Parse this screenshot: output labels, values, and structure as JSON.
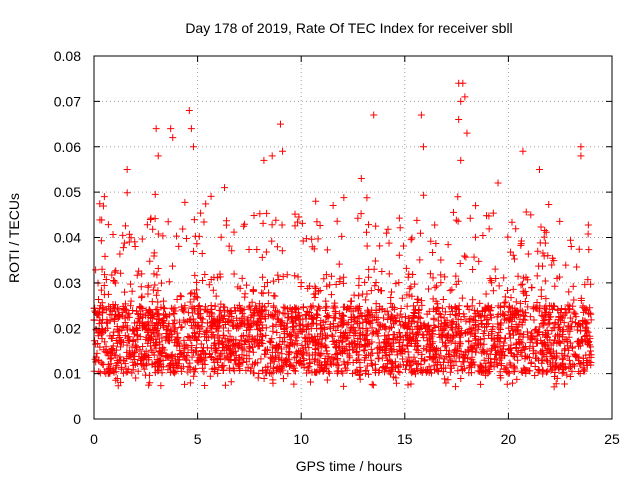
{
  "chart_data": {
    "type": "scatter",
    "title": "Day 178 of 2019, Rate Of TEC Index for receiver sbll",
    "xlabel": "GPS time / hours",
    "ylabel": "ROTI / TECUs",
    "xlim": [
      0,
      25
    ],
    "ylim": [
      0,
      0.08
    ],
    "xticks": [
      0,
      5,
      10,
      15,
      20,
      25
    ],
    "xtick_labels": [
      "0",
      "5",
      "10",
      "15",
      "20",
      "25"
    ],
    "yticks": [
      0,
      0.01,
      0.02,
      0.03,
      0.04,
      0.05,
      0.06,
      0.07,
      0.08
    ],
    "ytick_labels": [
      "0",
      "0.01",
      "0.02",
      "0.03",
      "0.04",
      "0.05",
      "0.06",
      "0.07",
      "0.08"
    ],
    "grid": true,
    "marker": "+",
    "series": [
      {
        "name": "ROTI",
        "color": "#ff0000",
        "x_range_hours": [
          0,
          24
        ],
        "typical_band": [
          0.01,
          0.025
        ],
        "n_points_approx": 3000,
        "notable_points": [
          {
            "x": 0.5,
            "y": 0.049
          },
          {
            "x": 1.6,
            "y": 0.055
          },
          {
            "x": 3.0,
            "y": 0.064
          },
          {
            "x": 3.1,
            "y": 0.058
          },
          {
            "x": 3.7,
            "y": 0.064
          },
          {
            "x": 3.8,
            "y": 0.062
          },
          {
            "x": 4.6,
            "y": 0.068
          },
          {
            "x": 4.7,
            "y": 0.064
          },
          {
            "x": 4.8,
            "y": 0.06
          },
          {
            "x": 6.3,
            "y": 0.051
          },
          {
            "x": 8.2,
            "y": 0.057
          },
          {
            "x": 8.6,
            "y": 0.058
          },
          {
            "x": 9.0,
            "y": 0.065
          },
          {
            "x": 9.1,
            "y": 0.059
          },
          {
            "x": 10.7,
            "y": 0.048
          },
          {
            "x": 12.9,
            "y": 0.053
          },
          {
            "x": 13.5,
            "y": 0.067
          },
          {
            "x": 15.8,
            "y": 0.067
          },
          {
            "x": 15.9,
            "y": 0.06
          },
          {
            "x": 17.6,
            "y": 0.074
          },
          {
            "x": 17.7,
            "y": 0.07
          },
          {
            "x": 17.8,
            "y": 0.074
          },
          {
            "x": 17.9,
            "y": 0.071
          },
          {
            "x": 18.0,
            "y": 0.063
          },
          {
            "x": 17.6,
            "y": 0.066
          },
          {
            "x": 17.7,
            "y": 0.057
          },
          {
            "x": 19.5,
            "y": 0.052
          },
          {
            "x": 20.7,
            "y": 0.059
          },
          {
            "x": 21.5,
            "y": 0.055
          },
          {
            "x": 23.5,
            "y": 0.06
          },
          {
            "x": 23.5,
            "y": 0.058
          }
        ]
      }
    ]
  }
}
